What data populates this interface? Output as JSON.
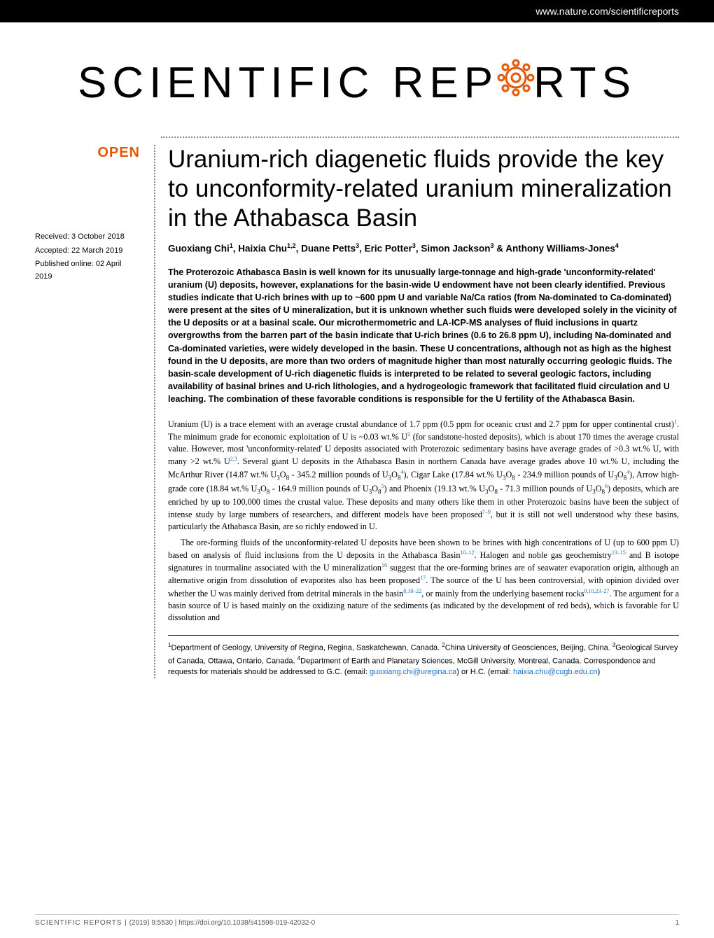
{
  "header": {
    "url": "www.nature.com/scientificreports"
  },
  "journal": {
    "name_part1": "SCIENTIFIC",
    "name_part2": "REP",
    "name_part3": "RTS",
    "gear_color": "#e85704"
  },
  "badge": {
    "open": "OPEN"
  },
  "meta": {
    "received": "Received: 3 October 2018",
    "accepted": "Accepted: 22 March 2019",
    "published": "Published online: 02 April 2019"
  },
  "article": {
    "title": "Uranium-rich diagenetic fluids provide the key to unconformity-related uranium mineralization in the Athabasca Basin",
    "authors_html": "Guoxiang Chi<sup>1</sup>, Haixia Chu<sup>1,2</sup>, Duane Petts<sup>3</sup>, Eric Potter<sup>3</sup>, Simon Jackson<sup>3</sup> & Anthony Williams-Jones<sup>4</sup>",
    "abstract": "The Proterozoic Athabasca Basin is well known for its unusually large-tonnage and high-grade 'unconformity-related' uranium (U) deposits, however, explanations for the basin-wide U endowment have not been clearly identified. Previous studies indicate that U-rich brines with up to ~600 ppm U and variable Na/Ca ratios (from Na-dominated to Ca-dominated) were present at the sites of U mineralization, but it is unknown whether such fluids were developed solely in the vicinity of the U deposits or at a basinal scale. Our microthermometric and LA-ICP-MS analyses of fluid inclusions in quartz overgrowths from the barren part of the basin indicate that U-rich brines (0.6 to 26.8 ppm U), including Na-dominated and Ca-dominated varieties, were widely developed in the basin. These U concentrations, although not as high as the highest found in the U deposits, are more than two orders of magnitude higher than most naturally occurring geologic fluids. The basin-scale development of U-rich diagenetic fluids is interpreted to be related to several geologic factors, including availability of basinal brines and U-rich lithologies, and a hydrogeologic framework that facilitated fluid circulation and U leaching. The combination of these favorable conditions is responsible for the U fertility of the Athabasca Basin.",
    "para1_html": "Uranium (U) is a trace element with an average crustal abundance of 1.7 ppm (0.5 ppm for oceanic crust and 2.7 ppm for upper continental crust)<sup>1</sup>. The minimum grade for economic exploitation of U is ~0.03 wt.% U<sup>2</sup> (for sandstone-hosted deposits), which is about 170 times the average crustal value. However, most 'unconformity-related' U deposits associated with Proterozoic sedimentary basins have average grades of >0.3 wt.% U, with many >2 wt.% U<sup>2,3</sup>. Several giant U deposits in the Athabasca Basin in northern Canada have average grades above 10 wt.% U, including the McArthur River (14.87 wt.% U<sub>3</sub>O<sub>8</sub> - 345.2 million pounds of U<sub>3</sub>O<sub>8</sub><sup>4</sup>), Cigar Lake (17.84 wt.% U<sub>3</sub>O<sub>8</sub> - 234.9 million pounds of U<sub>3</sub>O<sub>8</sub><sup>4</sup>), Arrow high-grade core (18.84 wt.% U<sub>3</sub>O<sub>8</sub> - 164.9 million pounds of U<sub>3</sub>O<sub>8</sub><sup>5</sup>) and Phoenix (19.13 wt.% U<sub>3</sub>O<sub>8</sub> - 71.3 million pounds of U<sub>3</sub>O<sub>8</sub><sup>6</sup>) deposits, which are enriched by up to 100,000 times the crustal value. These deposits and many others like them in other Proterozoic basins have been the subject of intense study by large numbers of researchers, and different models have been proposed<sup>7–9</sup>, but it is still not well understood why these basins, particularly the Athabasca Basin, are so richly endowed in U.",
    "para2_html": "The ore-forming fluids of the unconformity-related U deposits have been shown to be brines with high concentrations of U (up to 600 ppm U) based on analysis of fluid inclusions from the U deposits in the Athabasca Basin<sup>10–12</sup>. Halogen and noble gas geochemistry<sup>13–15</sup> and B isotope signatures in tourmaline associated with the U mineralization<sup>16</sup> suggest that the ore-forming brines are of seawater evaporation origin, although an alternative origin from dissolution of evaporites also has been proposed<sup>17</sup>. The source of the U has been controversial, with opinion divided over whether the U was mainly derived from detrital minerals in the basin<sup>8,18–22</sup>, or mainly from the underlying basement rocks<sup>9,10,23–27</sup>. The argument for a basin source of U is based mainly on the oxidizing nature of the sediments (as indicated by the development of red beds), which is favorable for U dissolution and",
    "affiliations_html": "<sup>1</sup>Department of Geology, University of Regina, Regina, Saskatchewan, Canada. <sup>2</sup>China University of Geosciences, Beijing, China. <sup>3</sup>Geological Survey of Canada, Ottawa, Ontario, Canada. <sup>4</sup>Department of Earth and Planetary Sciences, McGill University, Montreal, Canada. Correspondence and requests for materials should be addressed to G.C. (email: <span class=\"email-link\">guoxiang.chi@uregina.ca</span>) or H.C. (email: <span class=\"email-link\">haixia.chu@cugb.edu.cn</span>)"
  },
  "footer": {
    "journal": "SCIENTIFIC REPORTS |",
    "citation": "(2019) 9:5530 | https://doi.org/10.1038/s41598-019-42032-0",
    "page": "1"
  },
  "colors": {
    "accent": "#e85704",
    "link": "#1b6ec2",
    "background": "#ffffff",
    "text": "#000000"
  }
}
